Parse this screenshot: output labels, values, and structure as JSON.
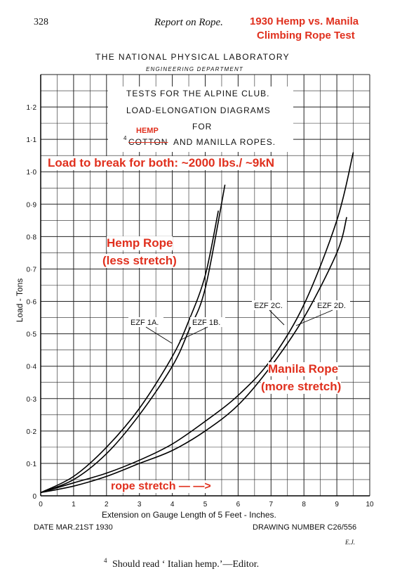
{
  "header": {
    "page_number": "328",
    "running_title": "Report on Rope.",
    "annotation_title_line1": "1930 Hemp vs. Manila",
    "annotation_title_line2": "Climbing Rope Test"
  },
  "lab": {
    "name": "THE NATIONAL PHYSICAL LABORATORY",
    "department": "ENGINEERING DEPARTMENT"
  },
  "title_box": {
    "line1": "TESTS FOR THE ALPINE CLUB.",
    "line2": "LOAD-ELONGATION DIAGRAMS",
    "line3": "FOR",
    "footnote_mark": "4",
    "struck_word": "COTTON",
    "replacement_word": "HEMP",
    "rest_of_line": "AND MANILLA ROPES."
  },
  "annotations": {
    "break_load": "Load to break for both: ~2000 lbs./ ~9kN",
    "hemp_line1": "Hemp Rope",
    "hemp_line2": "(less stretch)",
    "manila_line1": "Manila Rope",
    "manila_line2": "(more stretch)",
    "stretch_arrow": "rope stretch — —>"
  },
  "footer": {
    "date": "DATE MAR.21ST 1930",
    "drawing_number": "DRAWING NUMBER C26/556",
    "initials": "E.J.",
    "footnote": "Should read ‘ Italian hemp.’—Editor.",
    "footnote_mark": "4"
  },
  "chart_data": {
    "type": "line",
    "xlabel": "Extension on Gauge Length of 5 Feet - Inches.",
    "ylabel": "Load - Tons",
    "xlim": [
      0,
      10
    ],
    "ylim": [
      0,
      1.3
    ],
    "x_ticks": [
      "0",
      "1",
      "2",
      "3",
      "4",
      "5",
      "6",
      "7",
      "8",
      "9",
      "10"
    ],
    "y_ticks": [
      "0",
      "0·1",
      "0·2",
      "0·3",
      "0·4",
      "0·5",
      "0·6",
      "0·7",
      "0·8",
      "0·9",
      "1·0",
      "1·1",
      "1·2"
    ],
    "grid": true,
    "series": [
      {
        "name": "EZF 1A.",
        "x": [
          0,
          1,
          2,
          3,
          4,
          4.5,
          5,
          5.4
        ],
        "y": [
          0.01,
          0.06,
          0.15,
          0.27,
          0.43,
          0.54,
          0.68,
          0.88
        ]
      },
      {
        "name": "EZF 1B.",
        "x": [
          0,
          1,
          2,
          3,
          4,
          4.5,
          5,
          5.6
        ],
        "y": [
          0.01,
          0.05,
          0.13,
          0.25,
          0.4,
          0.51,
          0.64,
          0.96
        ]
      },
      {
        "name": "EZF 2C.",
        "x": [
          0,
          1,
          2,
          3,
          4,
          5,
          6,
          7,
          8,
          9,
          9.5
        ],
        "y": [
          0.01,
          0.04,
          0.07,
          0.11,
          0.16,
          0.23,
          0.31,
          0.42,
          0.59,
          0.85,
          1.06
        ]
      },
      {
        "name": "EZF 2D.",
        "x": [
          0,
          1,
          2,
          3,
          4,
          5,
          6,
          7,
          8,
          9,
          9.3
        ],
        "y": [
          0.01,
          0.03,
          0.06,
          0.1,
          0.14,
          0.2,
          0.28,
          0.4,
          0.55,
          0.75,
          0.86
        ]
      }
    ]
  }
}
